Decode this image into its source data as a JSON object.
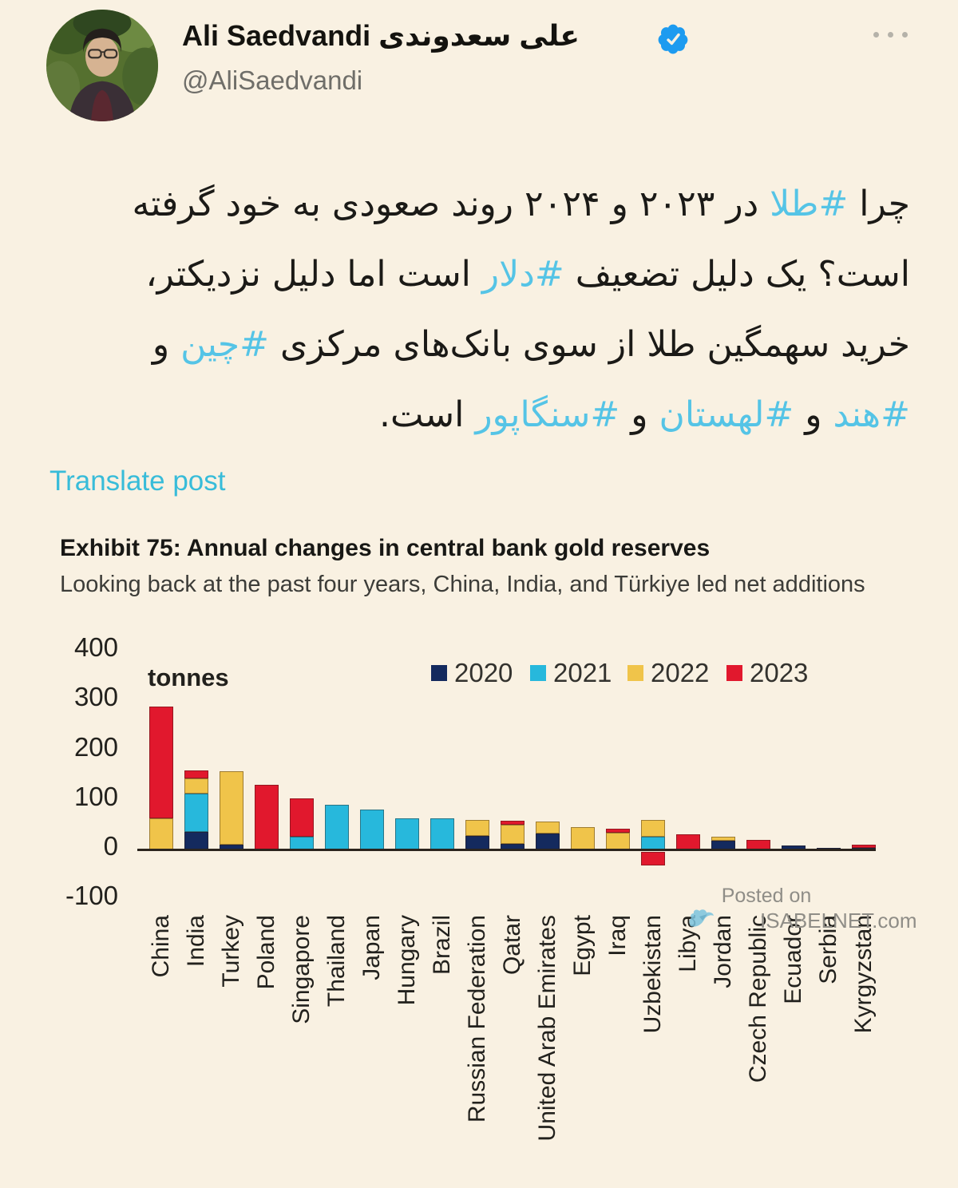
{
  "colors": {
    "page_bg": "#f9f1e2",
    "hashtag": "#55c4e6",
    "link": "#38bcd9",
    "verified_badge": "#1d9bf0",
    "grey_text": "#6f6e69",
    "watermark_grey": "#8f8d87",
    "axis_text": "#22211d"
  },
  "header": {
    "display_name": "Ali Saedvandi علی سعدوندی",
    "handle": "@AliSaedvandi"
  },
  "tweet": {
    "lines": [
      {
        "segments": [
          {
            "type": "text",
            "text": "چرا "
          },
          {
            "type": "hashtag",
            "text": "#طلا"
          },
          {
            "type": "text",
            "text": " در ۲۰۲۳ و ۲۰۲۴ روند صعودی به خود گرفته"
          }
        ]
      },
      {
        "segments": [
          {
            "type": "text",
            "text": "است؟ یک دلیل تضعیف "
          },
          {
            "type": "hashtag",
            "text": "#دلار"
          },
          {
            "type": "text",
            "text": " است اما دلیل نزدیکتر،"
          }
        ]
      },
      {
        "segments": [
          {
            "type": "text",
            "text": "خرید سهمگین طلا از سوی بانک‌های مرکزی "
          },
          {
            "type": "hashtag",
            "text": "#چین"
          },
          {
            "type": "text",
            "text": " و"
          }
        ]
      },
      {
        "segments": [
          {
            "type": "hashtag",
            "text": "#هند"
          },
          {
            "type": "text",
            "text": " و "
          },
          {
            "type": "hashtag",
            "text": "#لهستان"
          },
          {
            "type": "text",
            "text": " و "
          },
          {
            "type": "hashtag",
            "text": "#سنگاپور"
          },
          {
            "type": "text",
            "text": " است."
          }
        ]
      }
    ]
  },
  "translate_link": "Translate post",
  "chart_data": {
    "type": "bar",
    "stacked": true,
    "title": "Exhibit 75: Annual changes in central bank gold reserves",
    "subtitle": "Looking back at the past four years, China, India, and Türkiye led net additions",
    "unit_label": "tonnes",
    "ylim": [
      -100,
      400
    ],
    "y_ticks": [
      400,
      300,
      200,
      100,
      0,
      -100
    ],
    "grid": false,
    "legend_position": "top",
    "categories": [
      "China",
      "India",
      "Turkey",
      "Poland",
      "Singapore",
      "Thailand",
      "Japan",
      "Hungary",
      "Brazil",
      "Russian Federation",
      "Qatar",
      "United Arab Emirates",
      "Egypt",
      "Iraq",
      "Uzbekistan",
      "Libya",
      "Jordan",
      "Czech Republic",
      "Ecuador",
      "Serbia",
      "Kyrgyzstan"
    ],
    "series": [
      {
        "name": "2020",
        "color": "#142a5e",
        "values": [
          0,
          35,
          10,
          0,
          0,
          0,
          0,
          0,
          0,
          28,
          12,
          32,
          0,
          0,
          0,
          0,
          18,
          0,
          8,
          4,
          3
        ]
      },
      {
        "name": "2021",
        "color": "#27b8dc",
        "values": [
          0,
          78,
          0,
          0,
          26,
          90,
          81,
          63,
          62,
          0,
          0,
          0,
          0,
          0,
          25,
          0,
          0,
          0,
          0,
          0,
          0
        ]
      },
      {
        "name": "2022",
        "color": "#f0c44a",
        "values": [
          62,
          30,
          148,
          0,
          0,
          0,
          0,
          0,
          0,
          31,
          38,
          25,
          45,
          34,
          35,
          0,
          8,
          0,
          0,
          0,
          0
        ]
      },
      {
        "name": "2023",
        "color": "#e1182d",
        "values": [
          225,
          16,
          0,
          130,
          77,
          0,
          0,
          0,
          0,
          0,
          8,
          0,
          0,
          8,
          -28,
          30,
          0,
          20,
          0,
          0,
          7
        ]
      }
    ],
    "watermark": {
      "line1": "Posted on",
      "line2": "ISABELNET.com"
    }
  }
}
